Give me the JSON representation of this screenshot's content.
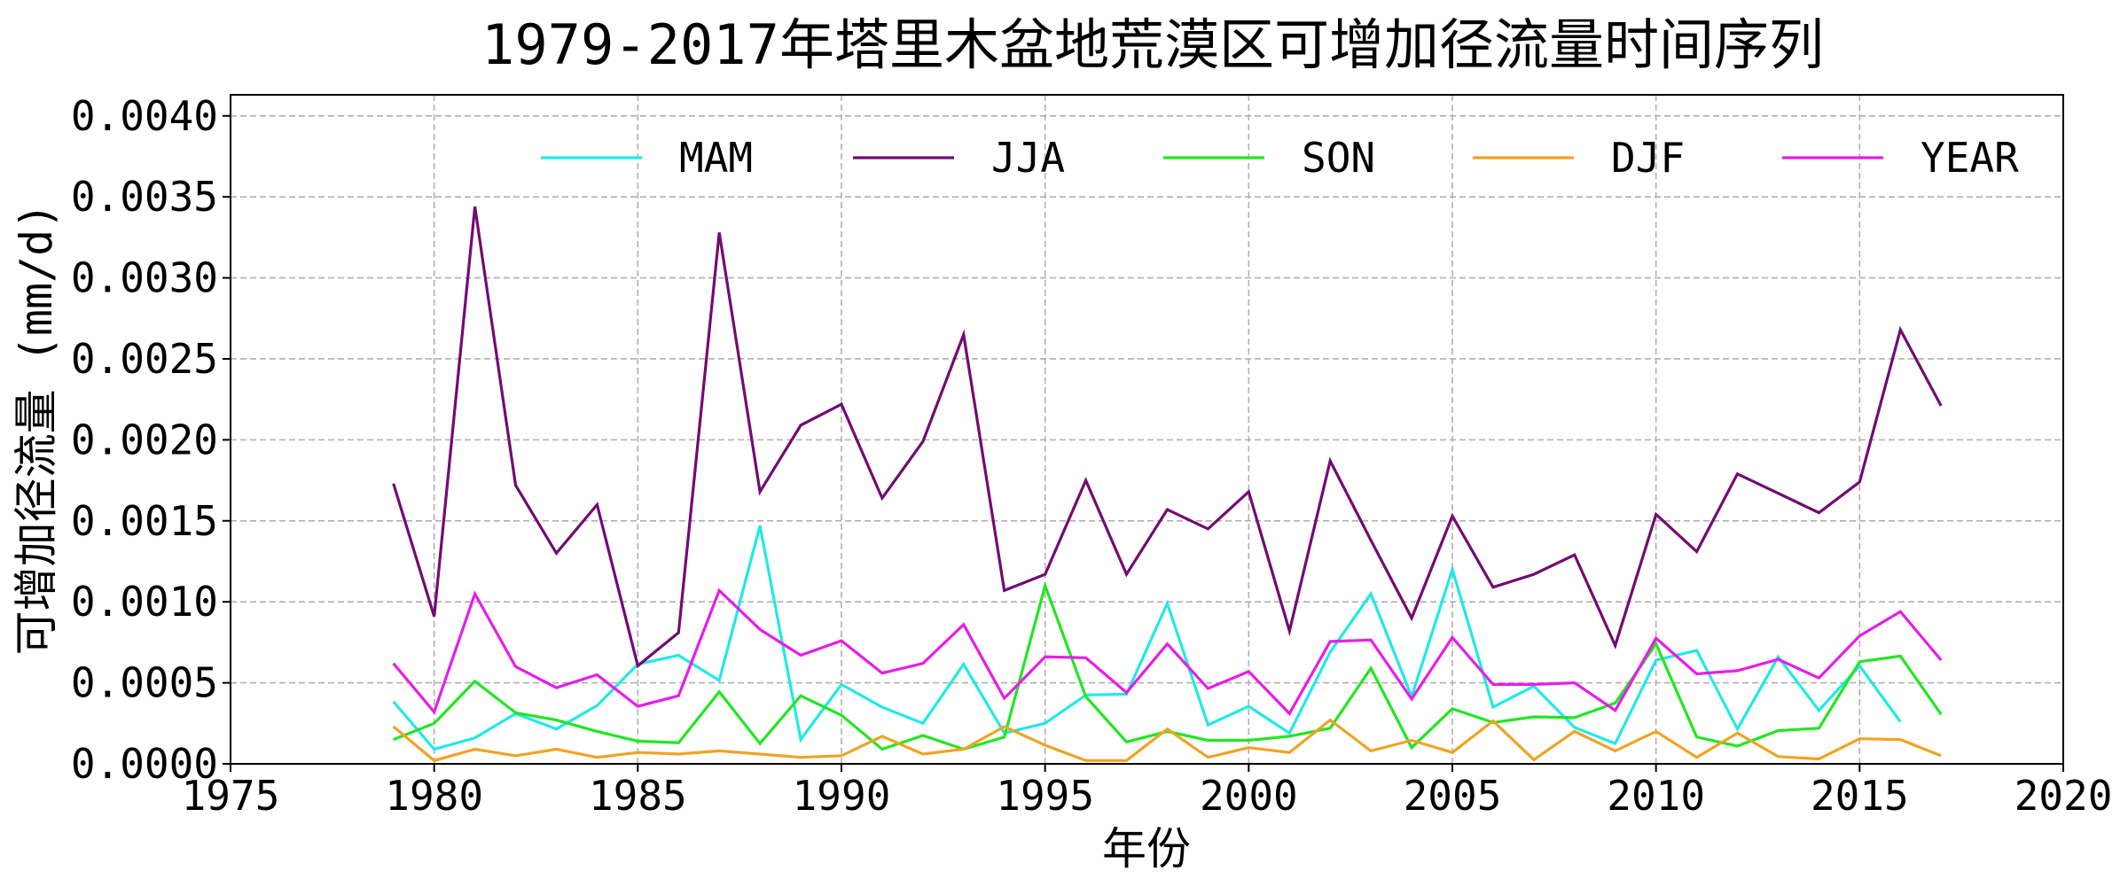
{
  "chart_data": {
    "type": "line",
    "title": "1979-2017年塔里木盆地荒漠区可增加径流量时间序列",
    "xlabel": "年份",
    "ylabel": "可增加径流量 (mm/d)",
    "xlim": [
      1975,
      2020
    ],
    "ylim": [
      0,
      0.00413
    ],
    "xticks": [
      "1975",
      "1980",
      "1985",
      "1990",
      "1995",
      "2000",
      "2005",
      "2010",
      "2015",
      "2020"
    ],
    "yticks": [
      "0.0000",
      "0.0005",
      "0.0010",
      "0.0015",
      "0.0020",
      "0.0025",
      "0.0030",
      "0.0035",
      "0.0040"
    ],
    "grid": true,
    "legend_position": "top",
    "x": [
      1979,
      1980,
      1981,
      1982,
      1983,
      1984,
      1985,
      1986,
      1987,
      1988,
      1989,
      1990,
      1991,
      1992,
      1993,
      1994,
      1995,
      1996,
      1997,
      1998,
      1999,
      2000,
      2001,
      2002,
      2003,
      2004,
      2005,
      2006,
      2007,
      2008,
      2009,
      2010,
      2011,
      2012,
      2013,
      2014,
      2015,
      2016,
      2017
    ],
    "series": [
      {
        "name": "MAM",
        "color": "#22e8e8",
        "values": [
          0.000384,
          9e-05,
          0.00016,
          0.00031,
          0.000215,
          0.00036,
          0.000615,
          0.00067,
          0.000515,
          0.00147,
          0.00015,
          0.00049,
          0.00035,
          0.00025,
          0.000615,
          0.00019,
          0.00025,
          0.000425,
          0.00043,
          0.00099,
          0.00024,
          0.000355,
          0.00019,
          0.00069,
          0.00105,
          0.000415,
          0.0012,
          0.00035,
          0.00048,
          0.000225,
          0.000125,
          0.00064,
          0.0007,
          0.000215,
          0.00066,
          0.00033,
          0.000605,
          0.00026,
          null
        ]
      },
      {
        "name": "JJA",
        "color": "#730a73",
        "values": [
          0.00173,
          0.00091,
          0.00344,
          0.00172,
          0.0013,
          0.0016,
          0.000605,
          0.00081,
          0.00328,
          0.00168,
          0.00209,
          0.00222,
          0.00164,
          0.00199,
          0.00265,
          0.00107,
          0.00117,
          0.00175,
          0.00117,
          0.00157,
          0.00145,
          0.00168,
          0.00082,
          0.00187,
          0.00138,
          0.0009,
          0.00153,
          0.00109,
          0.00117,
          0.00129,
          0.00073,
          0.00154,
          0.00131,
          0.00179,
          0.00167,
          0.00155,
          0.00174,
          0.00268,
          0.00221
        ]
      },
      {
        "name": "SON",
        "color": "#22e622",
        "values": [
          0.00015,
          0.00025,
          0.00051,
          0.000315,
          0.00027,
          0.0002,
          0.00014,
          0.00013,
          0.000445,
          0.000125,
          0.00042,
          0.0003,
          9e-05,
          0.000175,
          9e-05,
          0.000165,
          0.0011,
          0.000415,
          0.000135,
          0.0002,
          0.000145,
          0.000145,
          0.00017,
          0.00022,
          0.00059,
          0.0001,
          0.00034,
          0.000255,
          0.00029,
          0.000285,
          0.000375,
          0.00074,
          0.000165,
          0.00011,
          0.000205,
          0.00022,
          0.00063,
          0.000665,
          0.000305
        ]
      },
      {
        "name": "DJF",
        "color": "#f0a323",
        "values": [
          0.00023,
          2e-05,
          9e-05,
          5e-05,
          9e-05,
          4e-05,
          7e-05,
          6e-05,
          8e-05,
          6e-05,
          4e-05,
          5e-05,
          0.00017,
          6e-05,
          9e-05,
          0.00023,
          0.000115,
          2e-05,
          2e-05,
          0.000215,
          4e-05,
          0.0001,
          7e-05,
          0.00027,
          8e-05,
          0.000145,
          7e-05,
          0.000265,
          2.5e-05,
          0.0002,
          8e-05,
          0.0002,
          4e-05,
          0.00019,
          4.5e-05,
          3e-05,
          0.000155,
          0.00015,
          5e-05
        ]
      },
      {
        "name": "YEAR",
        "color": "#e61ee6",
        "values": [
          0.00062,
          0.00032,
          0.00105,
          0.0006,
          0.00047,
          0.00055,
          0.000355,
          0.00042,
          0.00107,
          0.00083,
          0.00067,
          0.00076,
          0.00056,
          0.00062,
          0.00086,
          0.000405,
          0.00066,
          0.000655,
          0.00044,
          0.00074,
          0.000465,
          0.00057,
          0.00031,
          0.000755,
          0.000765,
          0.0004,
          0.00078,
          0.00049,
          0.00049,
          0.0005,
          0.00033,
          0.000775,
          0.000555,
          0.000575,
          0.000645,
          0.00053,
          0.00079,
          0.00094,
          0.00064
        ]
      }
    ]
  }
}
